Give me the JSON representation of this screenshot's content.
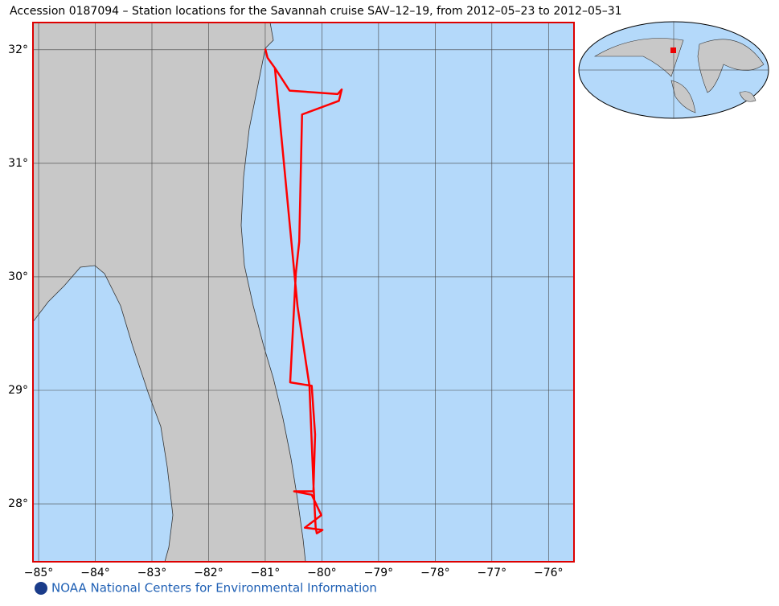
{
  "chart_data": {
    "type": "map",
    "title": "Accession 0187094 – Station locations for the Savannah cruise SAV–12–19, from 2012–05–23 to 2012–05–31",
    "xlim": [
      -85.1,
      -75.55
    ],
    "ylim": [
      27.49,
      32.24
    ],
    "xticks": [
      {
        "value": -85,
        "label": "−85°"
      },
      {
        "value": -84,
        "label": "−84°"
      },
      {
        "value": -83,
        "label": "−83°"
      },
      {
        "value": -82,
        "label": "−82°"
      },
      {
        "value": -81,
        "label": "−81°"
      },
      {
        "value": -80,
        "label": "−80°"
      },
      {
        "value": -79,
        "label": "−79°"
      },
      {
        "value": -78,
        "label": "−78°"
      },
      {
        "value": -77,
        "label": "−77°"
      },
      {
        "value": -76,
        "label": "−76°"
      }
    ],
    "yticks": [
      {
        "value": 28,
        "label": "28°"
      },
      {
        "value": 29,
        "label": "29°"
      },
      {
        "value": 30,
        "label": "30°"
      },
      {
        "value": 31,
        "label": "31°"
      },
      {
        "value": 32,
        "label": "32°"
      }
    ],
    "grid": true,
    "series": [
      {
        "color": "#ff0000",
        "x": [
          -81.0,
          -80.96,
          -80.83,
          -80.57,
          -79.72,
          -79.65,
          -79.7,
          -80.35,
          -80.4,
          -80.46,
          -80.56,
          -80.18,
          -80.12,
          -80.15,
          -80.49,
          -80.18,
          -80.01,
          -80.3,
          -79.99,
          -80.09,
          -80.11,
          -80.15,
          -80.22,
          -80.43,
          -80.83
        ],
        "values": [
          32.01,
          31.93,
          31.84,
          31.64,
          31.61,
          31.65,
          31.55,
          31.43,
          30.31,
          30.03,
          29.07,
          29.04,
          28.61,
          28.11,
          28.11,
          28.08,
          27.9,
          27.79,
          27.77,
          27.74,
          27.79,
          28.18,
          29.04,
          29.74,
          31.84
        ]
      }
    ],
    "footer": "NOAA National Centers for Environmental Information"
  }
}
